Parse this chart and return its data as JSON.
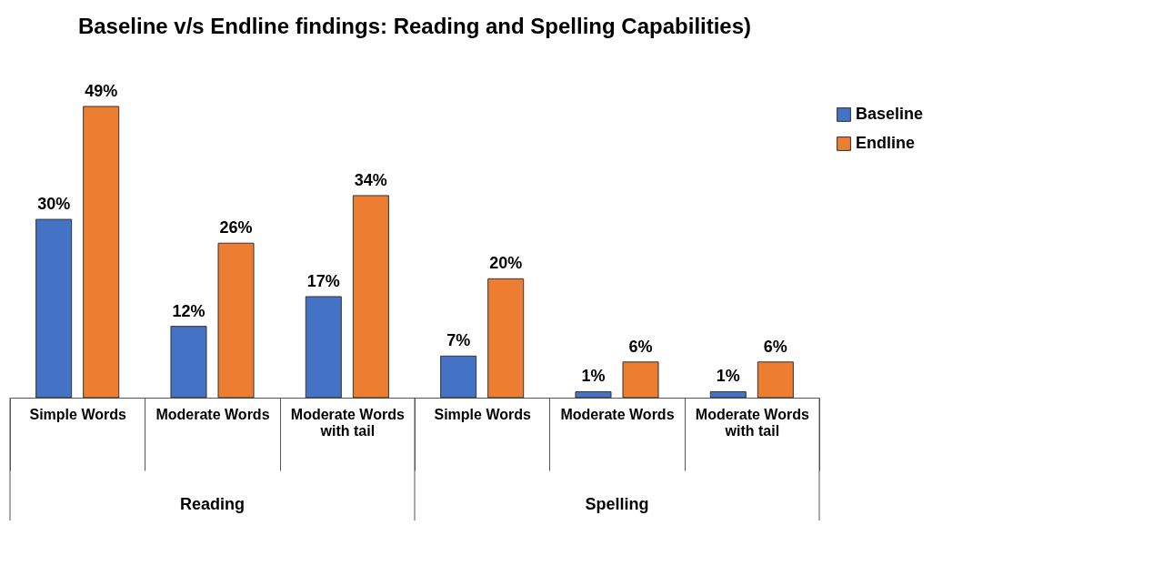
{
  "chart_data": {
    "type": "bar",
    "title": "Baseline v/s Endline findings: Reading and Spelling Capabilities)",
    "categories": [
      "Simple Words",
      "Moderate Words",
      "Moderate Words with tail",
      "Simple Words",
      "Moderate Words",
      "Moderate Words with tail"
    ],
    "series": [
      {
        "name": "Baseline",
        "color": "#4472c4",
        "values": [
          30,
          12,
          17,
          7,
          1,
          1
        ],
        "value_labels": [
          "30%",
          "12%",
          "17%",
          "7%",
          "1%",
          "1%"
        ]
      },
      {
        "name": "Endline",
        "color": "#ed7d31",
        "values": [
          49,
          26,
          34,
          20,
          6,
          6
        ],
        "value_labels": [
          "49%",
          "26%",
          "34%",
          "20%",
          "6%",
          "6%"
        ]
      }
    ],
    "annotations": [
      "Reading",
      "Spelling"
    ],
    "legend": "right",
    "grid": false
  }
}
